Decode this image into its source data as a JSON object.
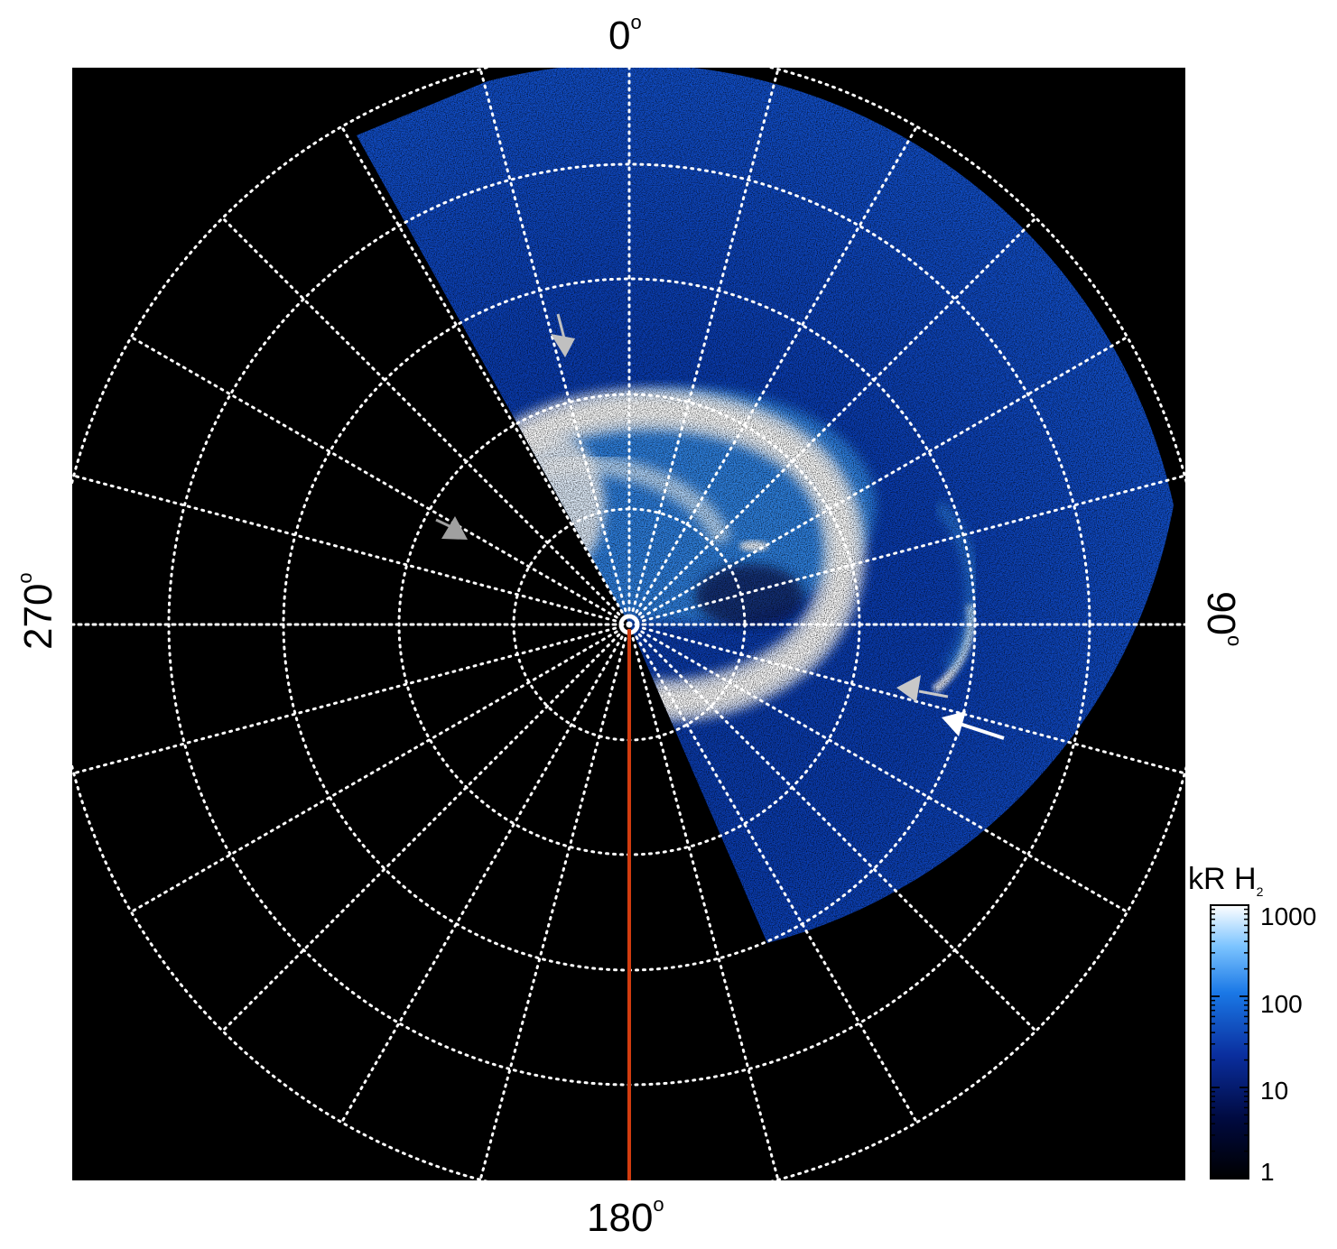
{
  "figure": {
    "axis_labels": {
      "top": "0",
      "right": "90",
      "bottom": "180",
      "left": "270",
      "degree_symbol": "o"
    },
    "colorbar": {
      "title": "kR H",
      "title_subscript": "2",
      "scale": "log",
      "ticks": [
        "1000",
        "100",
        "10",
        "1"
      ],
      "colors": [
        "#000000",
        "#000a40",
        "#0a2e9e",
        "#1a78e6",
        "#7cc4ff",
        "#ffffff"
      ]
    },
    "colors": {
      "background": "#000000",
      "grid": "#ffffff",
      "meridian_line": "#d23c0f",
      "aurora_bright": "#ffffff",
      "aurora_mid": "#1e82f0",
      "aurora_dim": "#0a2a8a"
    },
    "annotations": [
      {
        "name": "gray-arrow-upper",
        "color": "#c0c0c0"
      },
      {
        "name": "gray-arrow-left",
        "color": "#a0a0a0"
      },
      {
        "name": "gray-arrow-lower-right",
        "color": "#c8c8c8"
      },
      {
        "name": "white-arrow-right",
        "color": "#ffffff"
      }
    ]
  }
}
